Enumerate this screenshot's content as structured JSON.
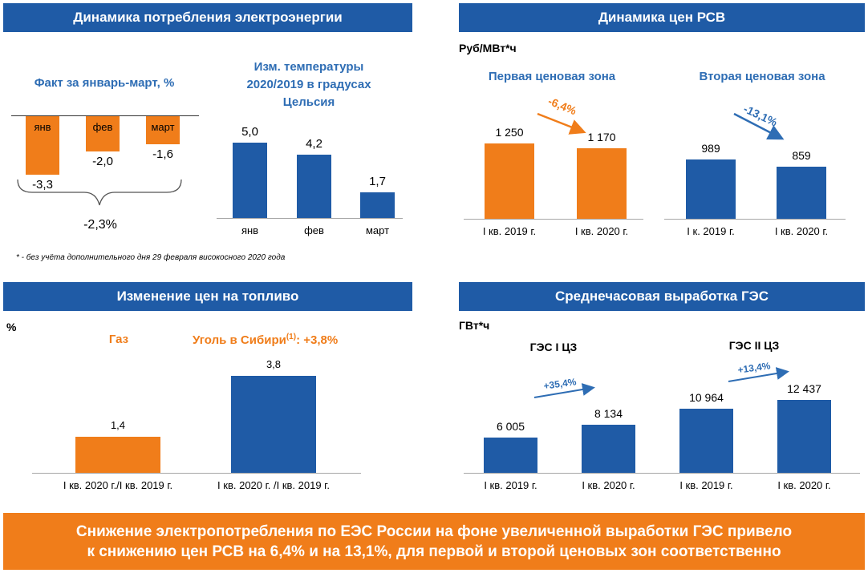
{
  "titles": {
    "consumption": "Динамика потребления электроэнергии",
    "prices": "Динамика цен РСВ",
    "fuel": "Изменение цен на топливо",
    "hydro": "Среднечасовая выработка ГЭС"
  },
  "colors": {
    "blue": "#1f5ba6",
    "orange": "#f07d1a"
  },
  "footnote": "* - без учёта  дополнительного дня 29 февраля високосного 2020 года",
  "bottom": {
    "line1": "Снижение электропотребления по ЕЭС России на фоне увеличенной выработки ГЭС привело",
    "line2": "к снижению цен РСВ на 6,4% и на 13,1%, для первой и второй ценовых зон соответственно"
  },
  "chart_data": [
    {
      "type": "bar",
      "title": "Факт за январь-март, %",
      "categories": [
        "янв",
        "фев",
        "март"
      ],
      "values": [
        -3.3,
        -2.0,
        -1.6
      ],
      "value_labels": [
        "-3,3",
        "-2,0",
        "-1,6"
      ],
      "total_label": "-2,3%",
      "ylim": [
        -3.3,
        0
      ]
    },
    {
      "type": "bar",
      "title": "Изм. температуры 2020/2019 в градусах Цельсия",
      "categories": [
        "янв",
        "фев",
        "март"
      ],
      "values": [
        5.0,
        4.2,
        1.7
      ],
      "value_labels": [
        "5,0",
        "4,2",
        "1,7"
      ],
      "ylim": [
        0,
        5.0
      ]
    },
    {
      "type": "bar",
      "title": "Первая ценовая зона",
      "unit": "Руб/МВт*ч",
      "categories": [
        "I кв. 2019 г.",
        "I кв. 2020 г."
      ],
      "values": [
        1250,
        1170
      ],
      "value_labels": [
        "1 250",
        "1 170"
      ],
      "change": "-6,4%",
      "ylim": [
        0,
        1250
      ]
    },
    {
      "type": "bar",
      "title": "Вторая ценовая зона",
      "categories": [
        "I к. 2019 г.",
        "I кв. 2020 г."
      ],
      "values": [
        989,
        859
      ],
      "value_labels": [
        "989",
        "859"
      ],
      "change": "-13,1%",
      "ylim": [
        0,
        1250
      ]
    },
    {
      "type": "bar",
      "unit": "%",
      "series_titles": [
        "Газ",
        "Уголь в Сибири",
        "(1)",
        ": +3,8%"
      ],
      "categories": [
        "I кв. 2020 г./I кв. 2019 г.",
        "I кв. 2020 г. /I кв. 2019 г."
      ],
      "values": [
        1.4,
        3.8
      ],
      "value_labels": [
        "1,4",
        "3,8"
      ],
      "ylim": [
        0,
        3.8
      ]
    },
    {
      "type": "bar",
      "unit": "ГВт*ч",
      "group_titles": [
        "ГЭС I ЦЗ",
        "ГЭС II ЦЗ"
      ],
      "categories": [
        "I кв. 2019 г.",
        "I кв. 2020 г.",
        "I кв. 2019 г.",
        "I кв. 2020 г."
      ],
      "values": [
        6005,
        8134,
        10964,
        12437
      ],
      "value_labels": [
        "6 005",
        "8 134",
        "10 964",
        "12 437"
      ],
      "changes": [
        "+35,4%",
        "+13,4%"
      ],
      "ylim": [
        0,
        12437
      ]
    }
  ]
}
